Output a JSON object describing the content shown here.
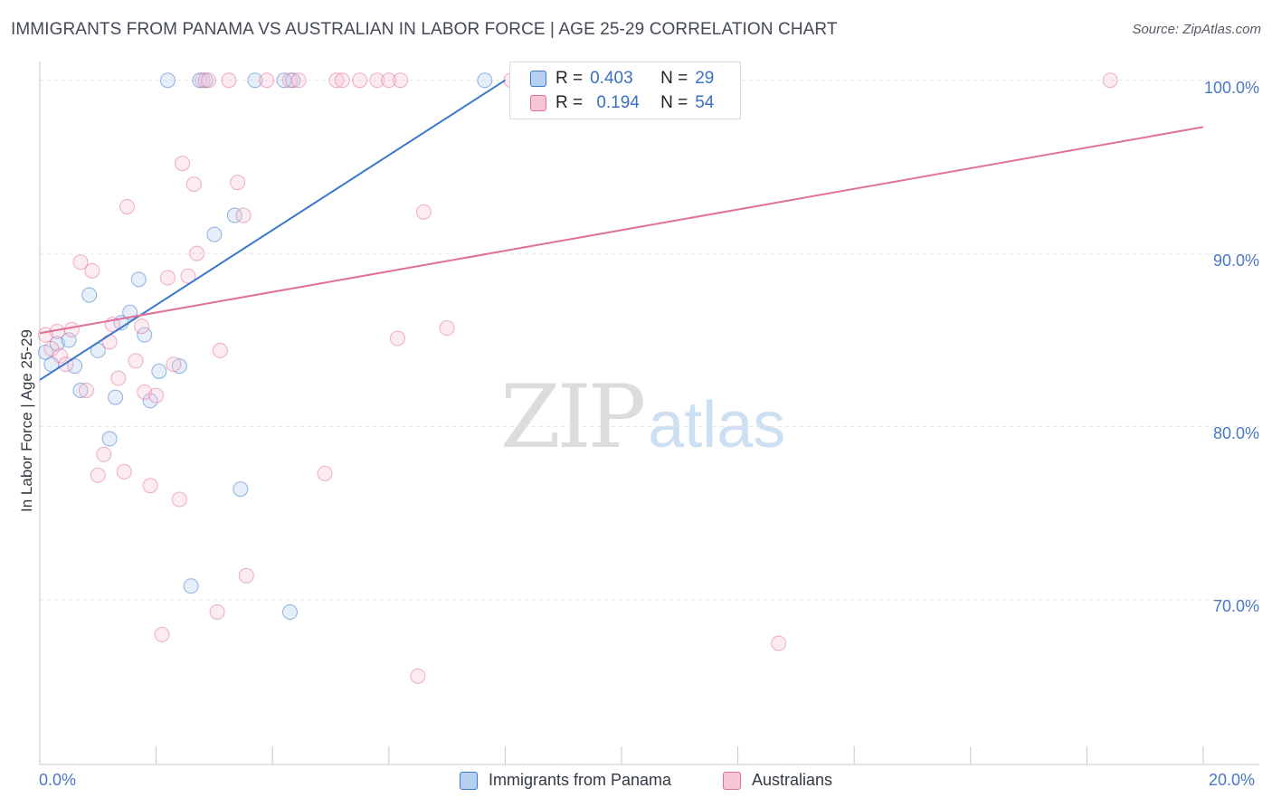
{
  "title": "IMMIGRANTS FROM PANAMA VS AUSTRALIAN IN LABOR FORCE | AGE 25-29 CORRELATION CHART",
  "source": "Source: ZipAtlas.com",
  "watermark": {
    "zip": "ZIP",
    "atlas": "atlas"
  },
  "colors": {
    "blue": "#3a78c9",
    "blue_fill": "#b7cff0",
    "pink": "#e0709a",
    "pink_fill": "#f6c6d6",
    "tick_text": "#4a78c4"
  },
  "legend": {
    "r_label": "R =",
    "n_label": "N =",
    "series": [
      {
        "r": "0.403",
        "n": "29"
      },
      {
        "r": "0.194",
        "n": "54"
      }
    ]
  },
  "chart_data": {
    "type": "scatter",
    "title": "IMMIGRANTS FROM PANAMA VS AUSTRALIAN IN LABOR FORCE | AGE 25-29 CORRELATION CHART",
    "xlabel": "",
    "ylabel": "In Labor Force | Age 25-29",
    "xlim": [
      0,
      20
    ],
    "ylim": [
      60.5,
      101.5
    ],
    "x_tick_labels": [
      "0.0%",
      "20.0%"
    ],
    "y_ticks": [
      70,
      80,
      90,
      100
    ],
    "y_tick_labels": [
      "70.0%",
      "80.0%",
      "90.0%",
      "100.0%"
    ],
    "grid": true,
    "series": [
      {
        "name": "Immigrants from Panama",
        "color": "#3a78c9",
        "r": 0.403,
        "n": 29,
        "trend": {
          "x0": 0.0,
          "y0": 82.7,
          "x1": 8.0,
          "y1": 100.0
        },
        "points": [
          [
            0.1,
            84.3
          ],
          [
            0.2,
            83.6
          ],
          [
            0.3,
            84.8
          ],
          [
            0.5,
            85.0
          ],
          [
            0.6,
            83.5
          ],
          [
            0.7,
            82.1
          ],
          [
            0.85,
            87.6
          ],
          [
            1.0,
            84.4
          ],
          [
            1.2,
            79.3
          ],
          [
            1.3,
            81.7
          ],
          [
            1.4,
            86.0
          ],
          [
            1.55,
            86.6
          ],
          [
            1.7,
            88.5
          ],
          [
            1.8,
            85.3
          ],
          [
            1.9,
            81.5
          ],
          [
            2.05,
            83.2
          ],
          [
            2.2,
            100.0
          ],
          [
            2.4,
            83.5
          ],
          [
            2.6,
            70.8
          ],
          [
            2.75,
            100.0
          ],
          [
            2.85,
            100.0
          ],
          [
            3.0,
            91.1
          ],
          [
            3.35,
            92.2
          ],
          [
            3.45,
            76.4
          ],
          [
            3.7,
            100.0
          ],
          [
            4.2,
            100.0
          ],
          [
            4.3,
            69.3
          ],
          [
            4.35,
            100.0
          ],
          [
            7.65,
            100.0
          ]
        ]
      },
      {
        "name": "Australians",
        "color": "#e0709a",
        "r": 0.194,
        "n": 54,
        "trend": {
          "x0": 0.0,
          "y0": 85.4,
          "x1": 20.0,
          "y1": 97.3
        },
        "points": [
          [
            0.1,
            85.3
          ],
          [
            0.2,
            84.5
          ],
          [
            0.3,
            85.5
          ],
          [
            0.35,
            84.1
          ],
          [
            0.45,
            83.6
          ],
          [
            0.55,
            85.6
          ],
          [
            0.7,
            89.5
          ],
          [
            0.8,
            82.1
          ],
          [
            0.9,
            89.0
          ],
          [
            1.0,
            77.2
          ],
          [
            1.1,
            78.4
          ],
          [
            1.2,
            84.9
          ],
          [
            1.25,
            85.9
          ],
          [
            1.35,
            82.8
          ],
          [
            1.45,
            77.4
          ],
          [
            1.5,
            92.7
          ],
          [
            1.65,
            83.8
          ],
          [
            1.75,
            85.8
          ],
          [
            1.8,
            82.0
          ],
          [
            1.9,
            76.6
          ],
          [
            2.0,
            81.8
          ],
          [
            2.1,
            68.0
          ],
          [
            2.2,
            88.6
          ],
          [
            2.3,
            83.6
          ],
          [
            2.4,
            75.8
          ],
          [
            2.45,
            95.2
          ],
          [
            2.55,
            88.7
          ],
          [
            2.65,
            94.0
          ],
          [
            2.7,
            90.0
          ],
          [
            2.8,
            100.0
          ],
          [
            2.9,
            100.0
          ],
          [
            3.05,
            69.3
          ],
          [
            3.1,
            84.4
          ],
          [
            3.25,
            100.0
          ],
          [
            3.4,
            94.1
          ],
          [
            3.5,
            92.2
          ],
          [
            3.55,
            71.4
          ],
          [
            3.9,
            100.0
          ],
          [
            4.3,
            100.0
          ],
          [
            4.45,
            100.0
          ],
          [
            4.9,
            77.3
          ],
          [
            5.1,
            100.0
          ],
          [
            5.2,
            100.0
          ],
          [
            5.5,
            100.0
          ],
          [
            5.8,
            100.0
          ],
          [
            6.0,
            100.0
          ],
          [
            6.2,
            100.0
          ],
          [
            6.15,
            85.1
          ],
          [
            6.5,
            65.6
          ],
          [
            6.6,
            92.4
          ],
          [
            7.0,
            85.7
          ],
          [
            8.1,
            100.0
          ],
          [
            12.7,
            67.5
          ],
          [
            18.4,
            100.0
          ]
        ]
      }
    ]
  },
  "bottom_legend": [
    "Immigrants from Panama",
    "Australians"
  ]
}
